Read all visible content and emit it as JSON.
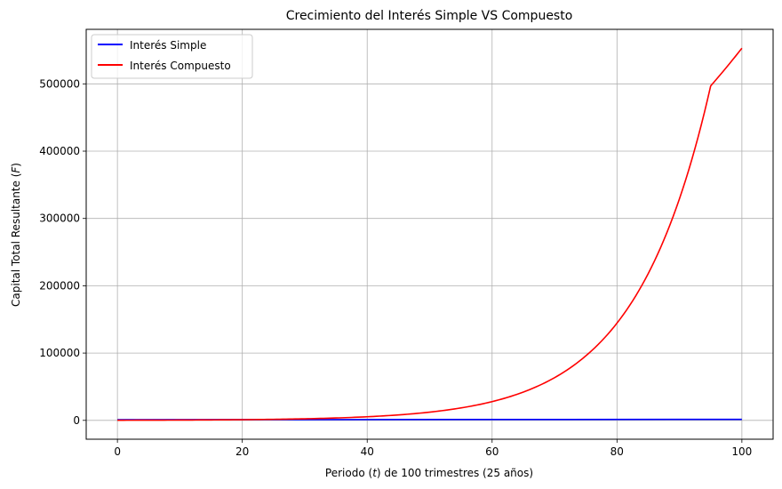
{
  "chart_data": {
    "type": "line",
    "title": "Crecimiento del Interés Simple VS Compuesto",
    "xlabel_prefix": "Periodo (",
    "xlabel_var": "t",
    "xlabel_suffix": ") de 100 trimestres (25 años)",
    "ylabel_prefix": "Capital Total Resultante (",
    "ylabel_var": "F",
    "ylabel_suffix": ")",
    "xlim": [
      -5,
      105
    ],
    "ylim": [
      -28000,
      581000
    ],
    "xticks": [
      0,
      20,
      40,
      60,
      80,
      100
    ],
    "yticks": [
      0,
      100000,
      200000,
      300000,
      400000,
      500000
    ],
    "grid": true,
    "legend_position": "top-left",
    "series": [
      {
        "name": "Interés Simple",
        "color": "#0000ff",
        "x": [
          0,
          100
        ],
        "y": [
          1000,
          1500
        ]
      },
      {
        "name": "Interés Compuesto",
        "color": "#ff0000",
        "x": [
          0,
          5,
          10,
          15,
          20,
          25,
          30,
          35,
          40,
          45,
          50,
          55,
          60,
          65,
          70,
          75,
          80,
          85,
          90,
          95,
          100
        ],
        "y": [
          200,
          301,
          455,
          686,
          1035,
          1562,
          2357,
          3558,
          5370,
          8104,
          12230,
          18460,
          27860,
          42050,
          63460,
          95780,
          144500,
          218100,
          329200,
          496900,
          553000
        ]
      }
    ]
  }
}
